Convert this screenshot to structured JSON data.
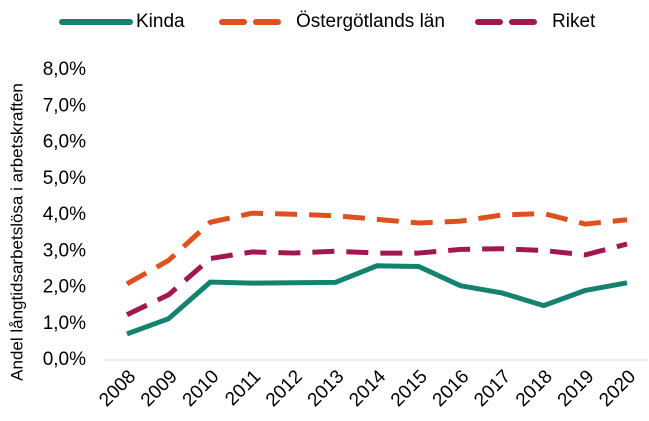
{
  "chart_data": {
    "type": "line",
    "ylabel": "Andel långtidsarbetslösa i arbetskraften",
    "categories": [
      "2008",
      "2009",
      "2010",
      "2011",
      "2012",
      "2013",
      "2014",
      "2015",
      "2016",
      "2017",
      "2018",
      "2019",
      "2020"
    ],
    "series": [
      {
        "name": "Kinda",
        "color": "#13826f",
        "dash": "solid",
        "values": [
          0.72,
          1.14,
          2.15,
          2.12,
          2.13,
          2.14,
          2.6,
          2.58,
          2.05,
          1.85,
          1.5,
          1.92,
          2.13
        ]
      },
      {
        "name": "Östergötlands län",
        "color": "#e0501f",
        "dash": "dashed",
        "values": [
          2.1,
          2.75,
          3.8,
          4.05,
          4.02,
          3.98,
          3.88,
          3.78,
          3.83,
          4.0,
          4.04,
          3.75,
          3.87
        ]
      },
      {
        "name": "Riket",
        "color": "#a3174f",
        "dash": "dashed",
        "values": [
          1.25,
          1.8,
          2.8,
          2.98,
          2.95,
          3.0,
          2.95,
          2.95,
          3.05,
          3.07,
          3.02,
          2.9,
          3.2
        ]
      }
    ],
    "ylim": [
      0,
      8
    ],
    "yticks": [
      {
        "value": 0,
        "label": "0,0%"
      },
      {
        "value": 1,
        "label": "1,0%"
      },
      {
        "value": 2,
        "label": "2,0%"
      },
      {
        "value": 3,
        "label": "3,0%"
      },
      {
        "value": 4,
        "label": "4,0%"
      },
      {
        "value": 5,
        "label": "5,0%"
      },
      {
        "value": 6,
        "label": "6,0%"
      },
      {
        "value": 7,
        "label": "7,0%"
      },
      {
        "value": 8,
        "label": "8,0%"
      }
    ],
    "legend": "top"
  }
}
